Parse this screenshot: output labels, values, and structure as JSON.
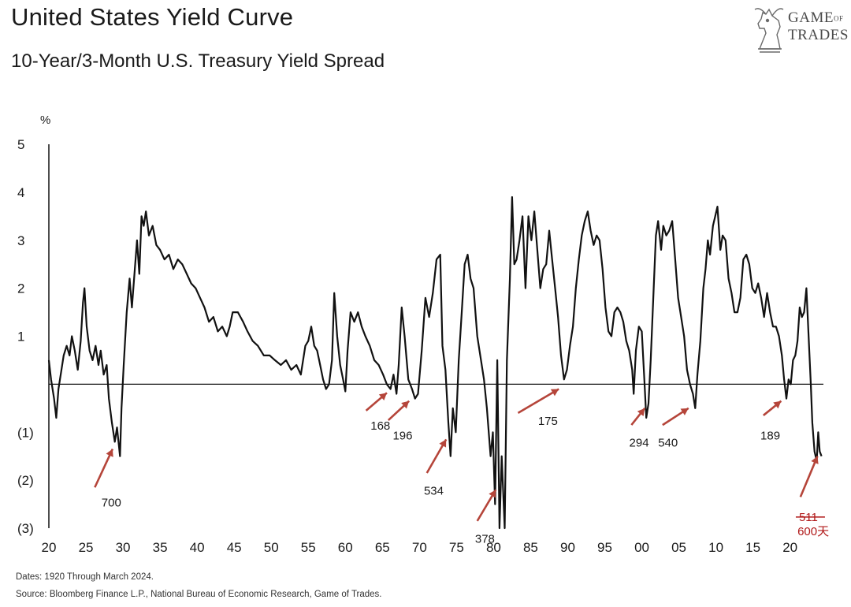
{
  "header": {
    "title": "United States Yield Curve",
    "subtitle": "10-Year/3-Month U.S. Treasury Yield Spread"
  },
  "logo": {
    "line1": "GAME",
    "line1_small": "OF",
    "line2": "TRADES"
  },
  "footer": {
    "dates": "Dates: 1920 Through March 2024.",
    "source": "Source: Bloomberg Finance L.P., National Bureau of Economic Research, Game of Trades."
  },
  "colors": {
    "line": "#111111",
    "arrow": "#b5453a",
    "red_text": "#b01818"
  },
  "chart_data": {
    "type": "line",
    "title": "United States Yield Curve",
    "subtitle": "10-Year/3-Month U.S. Treasury Yield Spread",
    "ylabel": "%",
    "xlim": [
      1920,
      2024.5
    ],
    "ylim": [
      -3,
      5
    ],
    "y_ticks": [
      5,
      4,
      3,
      2,
      1,
      0,
      -1,
      -2,
      -3
    ],
    "y_tick_labels": [
      "5",
      "4",
      "3",
      "2",
      "1",
      "",
      "(1)",
      "(2)",
      "(3)"
    ],
    "x_ticks": [
      1920,
      1925,
      1930,
      1935,
      1940,
      1945,
      1950,
      1955,
      1960,
      1965,
      1970,
      1975,
      1980,
      1985,
      1990,
      1995,
      2000,
      2005,
      2010,
      2015,
      2020
    ],
    "x_tick_labels": [
      "20",
      "25",
      "30",
      "35",
      "40",
      "45",
      "50",
      "55",
      "60",
      "65",
      "70",
      "75",
      "80",
      "85",
      "90",
      "95",
      "00",
      "05",
      "10",
      "15",
      "20"
    ],
    "zero_line": 0,
    "grid": false,
    "series": [
      {
        "points": [
          [
            1920.0,
            0.5
          ],
          [
            1920.3,
            0.1
          ],
          [
            1920.7,
            -0.3
          ],
          [
            1921.0,
            -0.7
          ],
          [
            1921.3,
            -0.1
          ],
          [
            1921.7,
            0.3
          ],
          [
            1922.0,
            0.6
          ],
          [
            1922.4,
            0.8
          ],
          [
            1922.8,
            0.6
          ],
          [
            1923.1,
            1.0
          ],
          [
            1923.5,
            0.7
          ],
          [
            1923.9,
            0.3
          ],
          [
            1924.3,
            0.9
          ],
          [
            1924.6,
            1.7
          ],
          [
            1924.8,
            2.0
          ],
          [
            1925.1,
            1.2
          ],
          [
            1925.5,
            0.7
          ],
          [
            1925.9,
            0.5
          ],
          [
            1926.3,
            0.8
          ],
          [
            1926.7,
            0.4
          ],
          [
            1927.0,
            0.7
          ],
          [
            1927.4,
            0.2
          ],
          [
            1927.8,
            0.4
          ],
          [
            1928.1,
            -0.3
          ],
          [
            1928.5,
            -0.8
          ],
          [
            1928.9,
            -1.2
          ],
          [
            1929.2,
            -0.9
          ],
          [
            1929.6,
            -1.5
          ],
          [
            1929.8,
            -0.5
          ],
          [
            1930.1,
            0.4
          ],
          [
            1930.5,
            1.5
          ],
          [
            1930.9,
            2.2
          ],
          [
            1931.2,
            1.6
          ],
          [
            1931.6,
            2.4
          ],
          [
            1931.9,
            3.0
          ],
          [
            1932.2,
            2.3
          ],
          [
            1932.5,
            3.5
          ],
          [
            1932.8,
            3.3
          ],
          [
            1933.1,
            3.6
          ],
          [
            1933.5,
            3.1
          ],
          [
            1934.0,
            3.3
          ],
          [
            1934.5,
            2.9
          ],
          [
            1935.0,
            2.8
          ],
          [
            1935.6,
            2.6
          ],
          [
            1936.2,
            2.7
          ],
          [
            1936.8,
            2.4
          ],
          [
            1937.4,
            2.6
          ],
          [
            1938.0,
            2.5
          ],
          [
            1938.6,
            2.3
          ],
          [
            1939.2,
            2.1
          ],
          [
            1939.8,
            2.0
          ],
          [
            1940.4,
            1.8
          ],
          [
            1941.0,
            1.6
          ],
          [
            1941.6,
            1.3
          ],
          [
            1942.2,
            1.4
          ],
          [
            1942.8,
            1.1
          ],
          [
            1943.4,
            1.2
          ],
          [
            1944.0,
            1.0
          ],
          [
            1944.4,
            1.2
          ],
          [
            1944.8,
            1.5
          ],
          [
            1945.5,
            1.5
          ],
          [
            1946.2,
            1.3
          ],
          [
            1946.8,
            1.1
          ],
          [
            1947.5,
            0.9
          ],
          [
            1948.2,
            0.8
          ],
          [
            1949.0,
            0.6
          ],
          [
            1949.8,
            0.6
          ],
          [
            1950.5,
            0.5
          ],
          [
            1951.3,
            0.4
          ],
          [
            1952.0,
            0.5
          ],
          [
            1952.7,
            0.3
          ],
          [
            1953.4,
            0.4
          ],
          [
            1954.0,
            0.2
          ],
          [
            1954.6,
            0.8
          ],
          [
            1955.0,
            0.9
          ],
          [
            1955.4,
            1.2
          ],
          [
            1955.8,
            0.8
          ],
          [
            1956.2,
            0.7
          ],
          [
            1956.6,
            0.4
          ],
          [
            1957.0,
            0.1
          ],
          [
            1957.4,
            -0.1
          ],
          [
            1957.8,
            0.0
          ],
          [
            1958.2,
            0.5
          ],
          [
            1958.5,
            1.9
          ],
          [
            1958.9,
            1.0
          ],
          [
            1959.3,
            0.4
          ],
          [
            1959.7,
            0.1
          ],
          [
            1960.0,
            -0.15
          ],
          [
            1960.3,
            0.7
          ],
          [
            1960.7,
            1.5
          ],
          [
            1961.2,
            1.3
          ],
          [
            1961.7,
            1.5
          ],
          [
            1962.2,
            1.2
          ],
          [
            1962.7,
            1.0
          ],
          [
            1963.3,
            0.8
          ],
          [
            1963.9,
            0.5
          ],
          [
            1964.5,
            0.4
          ],
          [
            1965.1,
            0.2
          ],
          [
            1965.6,
            0.0
          ],
          [
            1966.1,
            -0.1
          ],
          [
            1966.5,
            0.2
          ],
          [
            1966.9,
            -0.2
          ],
          [
            1967.2,
            0.4
          ],
          [
            1967.6,
            1.6
          ],
          [
            1968.0,
            1.0
          ],
          [
            1968.5,
            0.1
          ],
          [
            1969.0,
            -0.1
          ],
          [
            1969.4,
            -0.3
          ],
          [
            1969.8,
            -0.2
          ],
          [
            1970.3,
            0.7
          ],
          [
            1970.8,
            1.8
          ],
          [
            1971.3,
            1.4
          ],
          [
            1971.8,
            1.9
          ],
          [
            1972.3,
            2.6
          ],
          [
            1972.8,
            2.7
          ],
          [
            1973.1,
            0.8
          ],
          [
            1973.5,
            0.3
          ],
          [
            1973.9,
            -0.8
          ],
          [
            1974.2,
            -1.5
          ],
          [
            1974.5,
            -0.5
          ],
          [
            1974.9,
            -1.0
          ],
          [
            1975.3,
            0.5
          ],
          [
            1975.7,
            1.5
          ],
          [
            1976.1,
            2.5
          ],
          [
            1976.5,
            2.7
          ],
          [
            1976.9,
            2.2
          ],
          [
            1977.3,
            2.0
          ],
          [
            1977.8,
            1.0
          ],
          [
            1978.2,
            0.6
          ],
          [
            1978.7,
            0.1
          ],
          [
            1979.1,
            -0.5
          ],
          [
            1979.6,
            -1.5
          ],
          [
            1979.9,
            -1.0
          ],
          [
            1980.2,
            -2.5
          ],
          [
            1980.5,
            0.5
          ],
          [
            1980.8,
            -3.0
          ],
          [
            1981.1,
            -1.5
          ],
          [
            1981.5,
            -3.0
          ],
          [
            1981.8,
            0.5
          ],
          [
            1982.2,
            2.2
          ],
          [
            1982.5,
            3.9
          ],
          [
            1982.8,
            2.5
          ],
          [
            1983.1,
            2.6
          ],
          [
            1983.5,
            3.0
          ],
          [
            1983.9,
            3.5
          ],
          [
            1984.3,
            2.0
          ],
          [
            1984.7,
            3.5
          ],
          [
            1985.1,
            3.0
          ],
          [
            1985.5,
            3.6
          ],
          [
            1985.9,
            2.8
          ],
          [
            1986.3,
            2.0
          ],
          [
            1986.7,
            2.4
          ],
          [
            1987.1,
            2.5
          ],
          [
            1987.5,
            3.2
          ],
          [
            1987.9,
            2.6
          ],
          [
            1988.3,
            2.0
          ],
          [
            1988.7,
            1.4
          ],
          [
            1989.1,
            0.6
          ],
          [
            1989.5,
            0.1
          ],
          [
            1989.9,
            0.3
          ],
          [
            1990.3,
            0.8
          ],
          [
            1990.7,
            1.2
          ],
          [
            1991.1,
            2.0
          ],
          [
            1991.5,
            2.6
          ],
          [
            1991.9,
            3.1
          ],
          [
            1992.3,
            3.4
          ],
          [
            1992.7,
            3.6
          ],
          [
            1993.1,
            3.2
          ],
          [
            1993.5,
            2.9
          ],
          [
            1993.9,
            3.1
          ],
          [
            1994.3,
            3.0
          ],
          [
            1994.7,
            2.4
          ],
          [
            1995.1,
            1.6
          ],
          [
            1995.5,
            1.1
          ],
          [
            1995.9,
            1.0
          ],
          [
            1996.3,
            1.5
          ],
          [
            1996.7,
            1.6
          ],
          [
            1997.1,
            1.5
          ],
          [
            1997.5,
            1.3
          ],
          [
            1997.9,
            0.9
          ],
          [
            1998.3,
            0.7
          ],
          [
            1998.7,
            0.3
          ],
          [
            1998.9,
            -0.2
          ],
          [
            1999.2,
            0.7
          ],
          [
            1999.6,
            1.2
          ],
          [
            2000.0,
            1.1
          ],
          [
            2000.3,
            0.2
          ],
          [
            2000.6,
            -0.7
          ],
          [
            2000.9,
            -0.4
          ],
          [
            2001.2,
            0.5
          ],
          [
            2001.6,
            2.0
          ],
          [
            2001.9,
            3.1
          ],
          [
            2002.2,
            3.4
          ],
          [
            2002.6,
            2.8
          ],
          [
            2002.9,
            3.3
          ],
          [
            2003.3,
            3.1
          ],
          [
            2003.7,
            3.2
          ],
          [
            2004.1,
            3.4
          ],
          [
            2004.5,
            2.6
          ],
          [
            2004.9,
            1.8
          ],
          [
            2005.3,
            1.4
          ],
          [
            2005.7,
            1.0
          ],
          [
            2006.1,
            0.3
          ],
          [
            2006.5,
            0.0
          ],
          [
            2006.9,
            -0.2
          ],
          [
            2007.2,
            -0.5
          ],
          [
            2007.5,
            0.2
          ],
          [
            2007.9,
            0.9
          ],
          [
            2008.3,
            2.0
          ],
          [
            2008.6,
            2.4
          ],
          [
            2008.9,
            3.0
          ],
          [
            2009.2,
            2.7
          ],
          [
            2009.6,
            3.3
          ],
          [
            2009.9,
            3.5
          ],
          [
            2010.2,
            3.7
          ],
          [
            2010.6,
            2.8
          ],
          [
            2010.9,
            3.1
          ],
          [
            2011.3,
            3.0
          ],
          [
            2011.7,
            2.2
          ],
          [
            2012.1,
            1.9
          ],
          [
            2012.5,
            1.5
          ],
          [
            2012.9,
            1.5
          ],
          [
            2013.3,
            1.8
          ],
          [
            2013.7,
            2.6
          ],
          [
            2014.1,
            2.7
          ],
          [
            2014.5,
            2.5
          ],
          [
            2014.9,
            2.0
          ],
          [
            2015.3,
            1.9
          ],
          [
            2015.7,
            2.1
          ],
          [
            2016.1,
            1.8
          ],
          [
            2016.5,
            1.4
          ],
          [
            2016.9,
            1.9
          ],
          [
            2017.3,
            1.5
          ],
          [
            2017.7,
            1.2
          ],
          [
            2018.1,
            1.2
          ],
          [
            2018.5,
            1.0
          ],
          [
            2018.9,
            0.6
          ],
          [
            2019.2,
            0.1
          ],
          [
            2019.5,
            -0.3
          ],
          [
            2019.8,
            0.1
          ],
          [
            2020.1,
            0.0
          ],
          [
            2020.4,
            0.5
          ],
          [
            2020.7,
            0.6
          ],
          [
            2021.0,
            0.9
          ],
          [
            2021.3,
            1.6
          ],
          [
            2021.6,
            1.4
          ],
          [
            2021.9,
            1.5
          ],
          [
            2022.2,
            2.0
          ],
          [
            2022.5,
            1.0
          ],
          [
            2022.8,
            0.0
          ],
          [
            2023.0,
            -0.8
          ],
          [
            2023.3,
            -1.4
          ],
          [
            2023.6,
            -1.6
          ],
          [
            2023.8,
            -1.0
          ],
          [
            2024.0,
            -1.4
          ],
          [
            2024.25,
            -1.5
          ]
        ]
      }
    ],
    "annotations": [
      {
        "text": "700",
        "x": 1927.1,
        "y": -2.55
      },
      {
        "text": "168",
        "x": 1963.4,
        "y": -0.95
      },
      {
        "text": "196",
        "x": 1966.4,
        "y": -1.15
      },
      {
        "text": "534",
        "x": 1970.6,
        "y": -2.3
      },
      {
        "text": "378",
        "x": 1977.5,
        "y": -3.3
      },
      {
        "text": "175",
        "x": 1986.0,
        "y": -0.85
      },
      {
        "text": "294",
        "x": 1998.3,
        "y": -1.3
      },
      {
        "text": "540",
        "x": 2002.2,
        "y": -1.3
      },
      {
        "text": "189",
        "x": 2016.0,
        "y": -1.15
      },
      {
        "text": "511",
        "x": 2021.2,
        "y": -2.85,
        "strikethrough": true,
        "color": "red"
      },
      {
        "text": "600天",
        "x": 2021.0,
        "y": -3.15,
        "color": "red"
      }
    ]
  }
}
